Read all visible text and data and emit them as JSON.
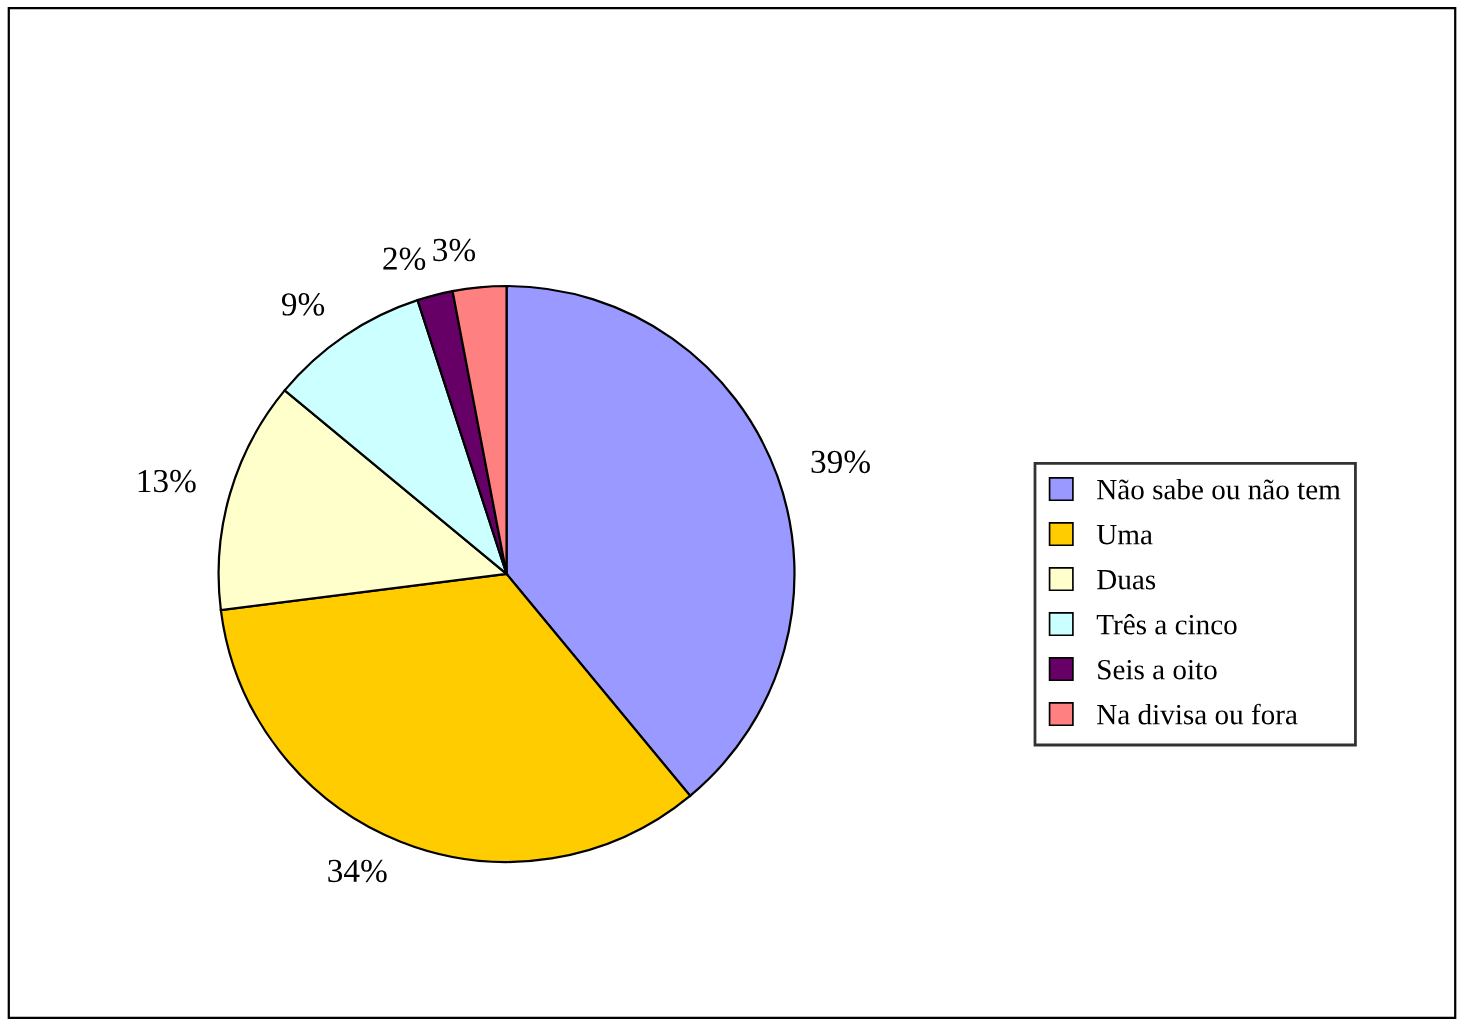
{
  "chart_data": {
    "type": "pie",
    "categories": [
      "Não sabe ou não tem",
      "Uma",
      "Duas",
      "Três a cinco",
      "Seis a oito",
      "Na divisa ou fora"
    ],
    "values": [
      39,
      34,
      13,
      9,
      2,
      3
    ],
    "value_labels": [
      "39%",
      "34%",
      "13%",
      "9%",
      "2%",
      "3%"
    ],
    "colors": [
      "#9999ff",
      "#ffcc00",
      "#ffffcc",
      "#ccffff",
      "#660066",
      "#ff8080"
    ],
    "legend": "right"
  }
}
